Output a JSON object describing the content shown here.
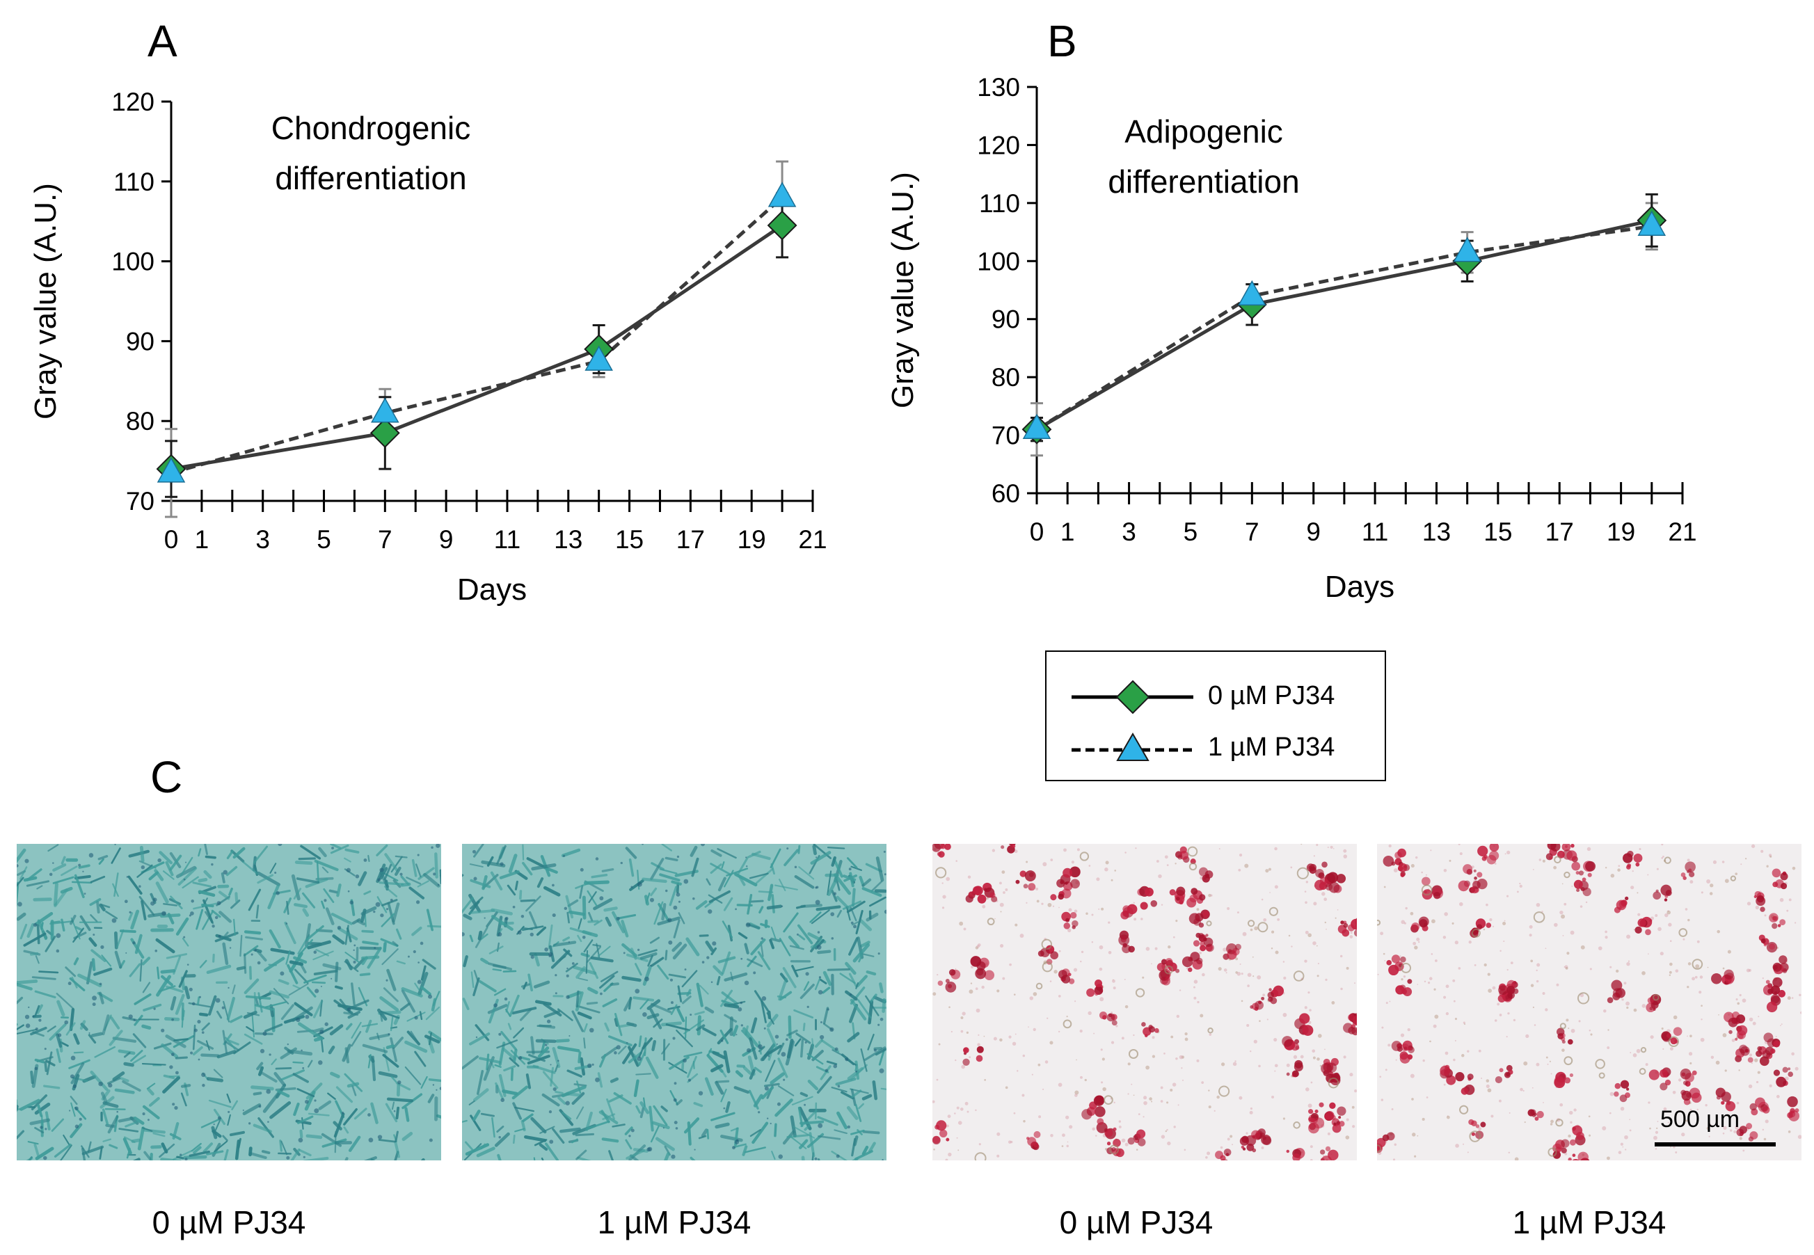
{
  "panels": {
    "A": {
      "letter": "A"
    },
    "B": {
      "letter": "B"
    },
    "C": {
      "letter": "C"
    }
  },
  "chart_data": [
    {
      "type": "line",
      "panel": "A",
      "title": "Chondrogenic differentiation",
      "title_lines": [
        "Chondrogenic",
        "differentiation"
      ],
      "xlabel": "Days",
      "ylabel": "Gray value (A.U.)",
      "xlim": [
        0,
        21
      ],
      "ylim": [
        70,
        120
      ],
      "xticks": [
        0,
        1,
        3,
        5,
        7,
        9,
        11,
        13,
        15,
        17,
        19,
        21
      ],
      "yticks": [
        70,
        80,
        90,
        100,
        110,
        120
      ],
      "series": [
        {
          "name": "0 µM PJ34",
          "style": "solid",
          "marker": "diamond",
          "color": "#2aa046",
          "x": [
            0,
            7,
            14,
            20
          ],
          "y": [
            74.0,
            78.5,
            89.0,
            104.5
          ],
          "err": [
            3.5,
            4.5,
            3.0,
            4.0
          ]
        },
        {
          "name": "1 µM PJ34",
          "style": "dashed",
          "marker": "triangle",
          "color": "#2fb3e8",
          "x": [
            0,
            7,
            14,
            20
          ],
          "y": [
            73.5,
            81.0,
            87.5,
            108.0
          ],
          "err": [
            5.5,
            3.0,
            2.0,
            4.5
          ]
        }
      ]
    },
    {
      "type": "line",
      "panel": "B",
      "title": "Adipogenic differentiation",
      "title_lines": [
        "Adipogenic",
        "differentiation"
      ],
      "xlabel": "Days",
      "ylabel": "Gray value (A.U.)",
      "xlim": [
        0,
        21
      ],
      "ylim": [
        60,
        130
      ],
      "xticks": [
        0,
        1,
        3,
        5,
        7,
        9,
        11,
        13,
        15,
        17,
        19,
        21
      ],
      "yticks": [
        60,
        70,
        80,
        90,
        100,
        110,
        120,
        130
      ],
      "series": [
        {
          "name": "0 µM PJ34",
          "style": "solid",
          "marker": "diamond",
          "color": "#2aa046",
          "x": [
            0,
            7,
            14,
            20
          ],
          "y": [
            71.0,
            92.5,
            100.0,
            107.0
          ],
          "err": [
            2.0,
            3.5,
            3.5,
            4.5
          ]
        },
        {
          "name": "1 µM PJ34",
          "style": "dashed",
          "marker": "triangle",
          "color": "#2fb3e8",
          "x": [
            0,
            7,
            14,
            20
          ],
          "y": [
            71.0,
            94.0,
            101.5,
            106.0
          ],
          "err": [
            4.5,
            2.0,
            3.5,
            4.0
          ]
        }
      ]
    }
  ],
  "legend": {
    "items": [
      {
        "label": "0 µM PJ34",
        "style": "solid",
        "marker": "diamond"
      },
      {
        "label": "1 µM PJ34",
        "style": "dashed",
        "marker": "triangle"
      }
    ]
  },
  "micrographs": {
    "images": [
      {
        "caption": "0 µM PJ34",
        "stain": "alcian-blue",
        "color": "#5fb3b0"
      },
      {
        "caption": "1 µM PJ34",
        "stain": "alcian-blue",
        "color": "#5fb3b0"
      },
      {
        "caption": "0 µM PJ34",
        "stain": "oil-red-o",
        "color": "#c8284a"
      },
      {
        "caption": "1 µM PJ34",
        "stain": "oil-red-o",
        "color": "#c8284a"
      }
    ],
    "scale_bar": {
      "label": "500 µm"
    }
  }
}
